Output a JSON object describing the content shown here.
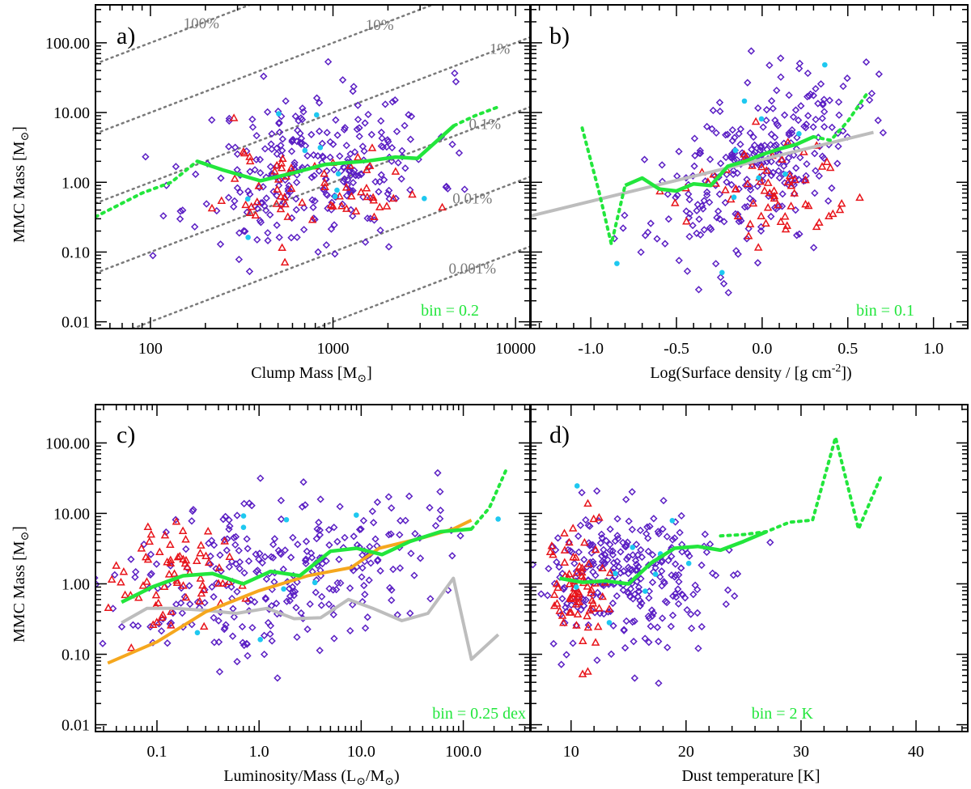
{
  "colors": {
    "diamond": "#5b1fc4",
    "triangle": "#e8141a",
    "dot": "#1ec8f0",
    "median_line": "#22e63c",
    "gray_line": "#bdbdbd",
    "orange_line": "#f5a71e",
    "percent_lines": "#7a7a7a",
    "axes": "#000000"
  },
  "chart_data": [
    {
      "panel_label": "a)",
      "type": "scatter",
      "xscale": "log",
      "yscale": "log",
      "xlim": [
        50,
        12000
      ],
      "ylim": [
        0.008,
        350
      ],
      "xlabel_main": "Clump Mass [M",
      "xlabel_sub": "⊙",
      "xlabel_end": "]",
      "ylabel_main": "MMC Mass [M",
      "ylabel_sub": "⊙",
      "ylabel_end": "]",
      "xticks": [
        100,
        1000,
        10000
      ],
      "xtick_labels": [
        "100",
        "1000",
        "10000"
      ],
      "yticks": [
        0.01,
        0.1,
        1,
        10,
        100
      ],
      "ytick_labels": [
        "0.01",
        "0.10",
        "1.00",
        "10.00",
        "100.00"
      ],
      "bin_label": "bin = 0.2",
      "percent_lines": [
        {
          "label": "100%",
          "fraction": 1.0
        },
        {
          "label": "10%",
          "fraction": 0.1
        },
        {
          "label": "1%",
          "fraction": 0.01
        },
        {
          "label": "0.1%",
          "fraction": 0.001
        },
        {
          "label": "0.01%",
          "fraction": 0.0001
        },
        {
          "label": "0.001%",
          "fraction": 1e-05
        }
      ],
      "median_line": {
        "x": [
          180,
          250,
          400,
          600,
          900,
          1500,
          2200,
          2900,
          4600
        ],
        "y": [
          2.0,
          1.5,
          1.05,
          1.35,
          1.8,
          2.0,
          2.3,
          2.2,
          6.5
        ]
      },
      "median_dotted": [
        {
          "x": [
            50,
            90,
            130,
            180
          ],
          "y": [
            0.32,
            0.7,
            1.0,
            2.0
          ]
        },
        {
          "x": [
            4600,
            6000,
            8000
          ],
          "y": [
            6.5,
            9.0,
            12.0
          ]
        }
      ],
      "cloud": {
        "n_diamond": 280,
        "n_triangle": 65,
        "n_dot": 10,
        "xc": 800,
        "xsd": 0.33,
        "yc": 1.6,
        "ysd": 0.55,
        "trixc": 800,
        "trixsd": 0.25,
        "triyc": 0.8,
        "triysd": 0.35,
        "slope": 0.35,
        "seed": 11
      }
    },
    {
      "panel_label": "b)",
      "type": "scatter",
      "xscale": "linear",
      "yscale": "log",
      "xlim": [
        -1.35,
        1.2
      ],
      "ylim": [
        0.008,
        350
      ],
      "xlabel_main": "Log(Surface density / [g cm",
      "xlabel_sup": "-2",
      "xlabel_end": "])",
      "xticks": [
        -1.0,
        -0.5,
        0.0,
        0.5,
        1.0
      ],
      "xtick_labels": [
        "-1.0",
        "-0.5",
        "0.0",
        "0.5",
        "1.0"
      ],
      "yticks": [
        0.01,
        0.1,
        1,
        10,
        100
      ],
      "bin_label": "bin = 0.1",
      "gray_line": {
        "x": [
          -1.35,
          0.65
        ],
        "y": [
          0.33,
          5.2
        ]
      },
      "median_line": {
        "x": [
          -0.8,
          -0.7,
          -0.6,
          -0.5,
          -0.4,
          -0.3,
          -0.2,
          -0.1,
          0.0,
          0.1,
          0.2,
          0.3
        ],
        "y": [
          0.9,
          1.15,
          0.8,
          0.75,
          0.95,
          0.9,
          1.7,
          2.0,
          2.5,
          3.0,
          3.5,
          4.5
        ]
      },
      "median_dotted": [
        {
          "x": [
            -1.05,
            -0.95,
            -0.88,
            -0.8
          ],
          "y": [
            6.0,
            0.7,
            0.13,
            0.9
          ]
        },
        {
          "x": [
            0.3,
            0.4,
            0.5,
            0.62
          ],
          "y": [
            4.5,
            4.0,
            7.5,
            20.0
          ]
        }
      ],
      "cloud": {
        "n_diamond": 280,
        "n_triangle": 65,
        "n_dot": 10,
        "xc": -0.05,
        "xsd": 0.3,
        "yc": 1.6,
        "ysd": 0.55,
        "trixc": 0.05,
        "trixsd": 0.22,
        "triyc": 0.8,
        "triysd": 0.35,
        "slope": 0.8,
        "seed": 23
      }
    },
    {
      "panel_label": "c)",
      "type": "scatter",
      "xscale": "log",
      "yscale": "log",
      "xlim": [
        0.025,
        450
      ],
      "ylim": [
        0.008,
        350
      ],
      "xlabel_main": "Luminosity/Mass (L",
      "xlabel_sub": "⊙",
      "xlabel_mid": "/M",
      "xlabel_sub2": "⊙",
      "xlabel_end": ")",
      "ylabel_main": "MMC Mass [M",
      "ylabel_sub": "⊙",
      "ylabel_end": "]",
      "xticks": [
        0.1,
        1.0,
        10.0,
        100.0
      ],
      "xtick_labels": [
        "0.1",
        "1.0",
        "10.0",
        "100.0"
      ],
      "yticks": [
        0.01,
        0.1,
        1,
        10,
        100
      ],
      "ytick_labels": [
        "0.01",
        "0.10",
        "1.00",
        "10.00",
        "100.00"
      ],
      "bin_label": "bin = 0.25 dex",
      "orange_line": {
        "x": [
          0.033,
          0.1,
          0.3,
          1,
          3,
          8,
          15,
          40,
          80,
          120
        ],
        "y": [
          0.075,
          0.15,
          0.4,
          0.8,
          1.3,
          1.7,
          3.2,
          4.5,
          6.0,
          8.0
        ]
      },
      "gray_line": {
        "x": [
          0.045,
          0.08,
          0.15,
          0.3,
          0.6,
          1.2,
          2.2,
          4.0,
          7.5,
          13,
          25,
          45,
          80,
          120,
          220
        ],
        "y": [
          0.28,
          0.45,
          0.45,
          0.42,
          0.38,
          0.45,
          0.32,
          0.33,
          0.6,
          0.45,
          0.3,
          0.38,
          1.2,
          0.085,
          0.19
        ]
      },
      "median_line": {
        "x": [
          0.045,
          0.09,
          0.18,
          0.35,
          0.7,
          1.3,
          2.5,
          5,
          9,
          16,
          30,
          60,
          120
        ],
        "y": [
          0.55,
          0.9,
          1.3,
          1.4,
          1.0,
          1.5,
          1.3,
          2.9,
          3.2,
          2.6,
          4.0,
          5.5,
          6.0
        ]
      },
      "median_dotted": [
        {
          "x": [
            120,
            180,
            260
          ],
          "y": [
            6.0,
            12.0,
            40.0
          ]
        }
      ],
      "cloud": {
        "n_diamond": 290,
        "n_triangle": 70,
        "n_dot": 10,
        "xc": 1.5,
        "xsd": 0.75,
        "yc": 1.6,
        "ysd": 0.55,
        "trixc": 0.15,
        "trixsd": 0.3,
        "triyc": 1.3,
        "triysd": 0.35,
        "slope": 0.25,
        "seed": 37
      }
    },
    {
      "panel_label": "d)",
      "type": "scatter",
      "xscale": "linear",
      "yscale": "log",
      "xlim": [
        6.5,
        44.5
      ],
      "ylim": [
        0.008,
        350
      ],
      "xlabel_main": "Dust temperature [K]",
      "xticks": [
        10,
        20,
        30,
        40
      ],
      "xtick_labels": [
        "10",
        "20",
        "30",
        "40"
      ],
      "yticks": [
        0.01,
        0.1,
        1,
        10,
        100
      ],
      "bin_label": "bin = 2 K",
      "median_line": {
        "x": [
          9,
          11,
          13,
          15,
          17,
          19,
          21,
          23,
          25,
          27
        ],
        "y": [
          1.2,
          1.05,
          1.1,
          1.0,
          2.0,
          3.2,
          3.4,
          3.0,
          4.0,
          5.5
        ]
      },
      "median_dotted": [
        {
          "x": [
            23,
            25,
            27,
            29,
            31,
            33,
            35,
            37
          ],
          "y": [
            4.8,
            5.0,
            5.5,
            7.5,
            8.0,
            120,
            6.0,
            35
          ]
        }
      ],
      "cloud": {
        "n_diamond": 290,
        "n_triangle": 75,
        "n_dot": 10,
        "xc": 15,
        "xsd": 4.5,
        "yc": 1.2,
        "ysd": 0.5,
        "trixc": 11,
        "trixsd": 1.4,
        "triyc": 0.8,
        "triysd": 0.45,
        "slope": 0.06,
        "seed": 53
      }
    }
  ]
}
